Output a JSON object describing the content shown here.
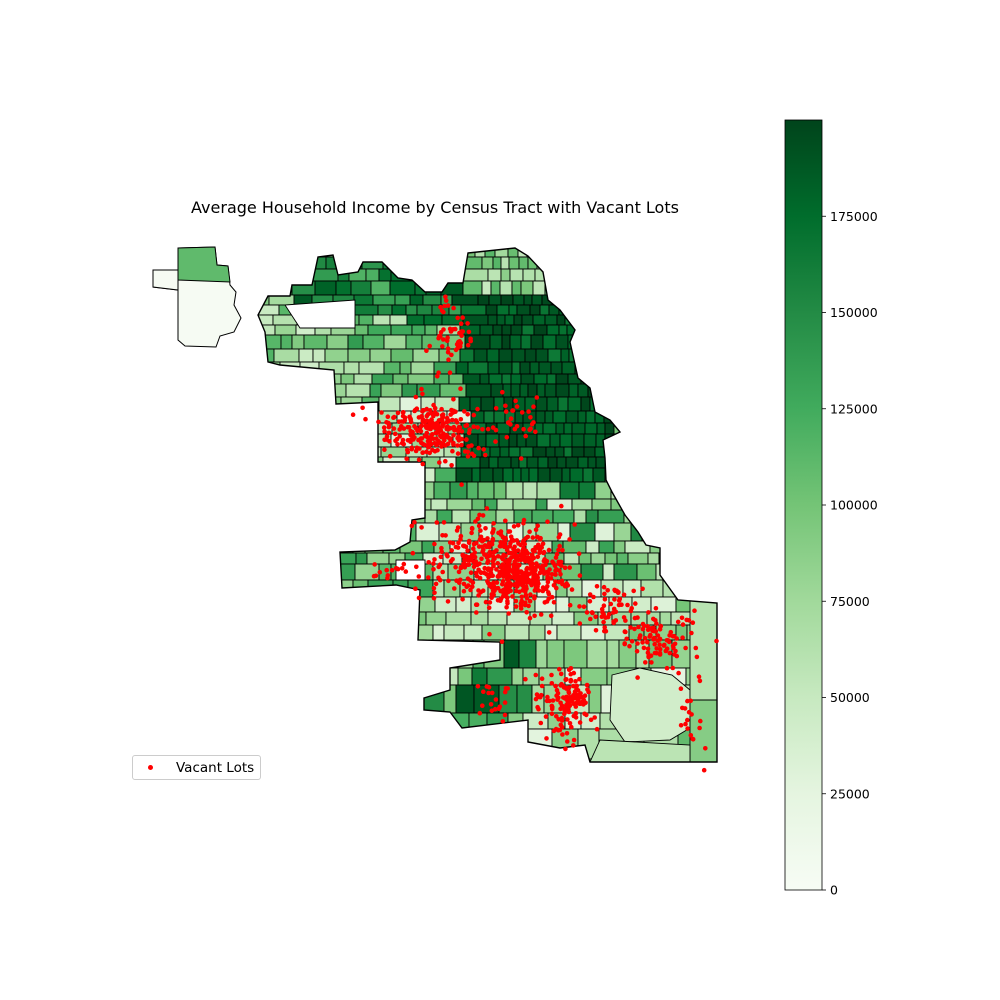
{
  "title": "Average Household Income by Census Tract with Vacant Lots",
  "legend": {
    "label": "Vacant Lots",
    "marker_color": "#ff0000"
  },
  "colorbar": {
    "cmap": "Greens",
    "min": 0,
    "max": 200000,
    "ticks": [
      0,
      25000,
      50000,
      75000,
      100000,
      125000,
      150000,
      175000
    ],
    "tick_labels": [
      "0",
      "25000",
      "50000",
      "75000",
      "100000",
      "125000",
      "150000",
      "175000"
    ],
    "stops": [
      "#f7fcf5",
      "#e5f5e0",
      "#c7e9c0",
      "#a1d99b",
      "#74c476",
      "#41ab5d",
      "#238b45",
      "#006d2c",
      "#00441b"
    ]
  },
  "chart_data": {
    "type": "choropleth",
    "title": "Average Household Income by Census Tract with Vacant Lots",
    "legend_placement": "lower-left",
    "colorbar_range": [
      0,
      200000
    ],
    "layers": [
      {
        "name": "Census tracts",
        "encoding": "fill = average household income"
      },
      {
        "name": "Vacant Lots",
        "encoding": "red point markers"
      }
    ]
  }
}
